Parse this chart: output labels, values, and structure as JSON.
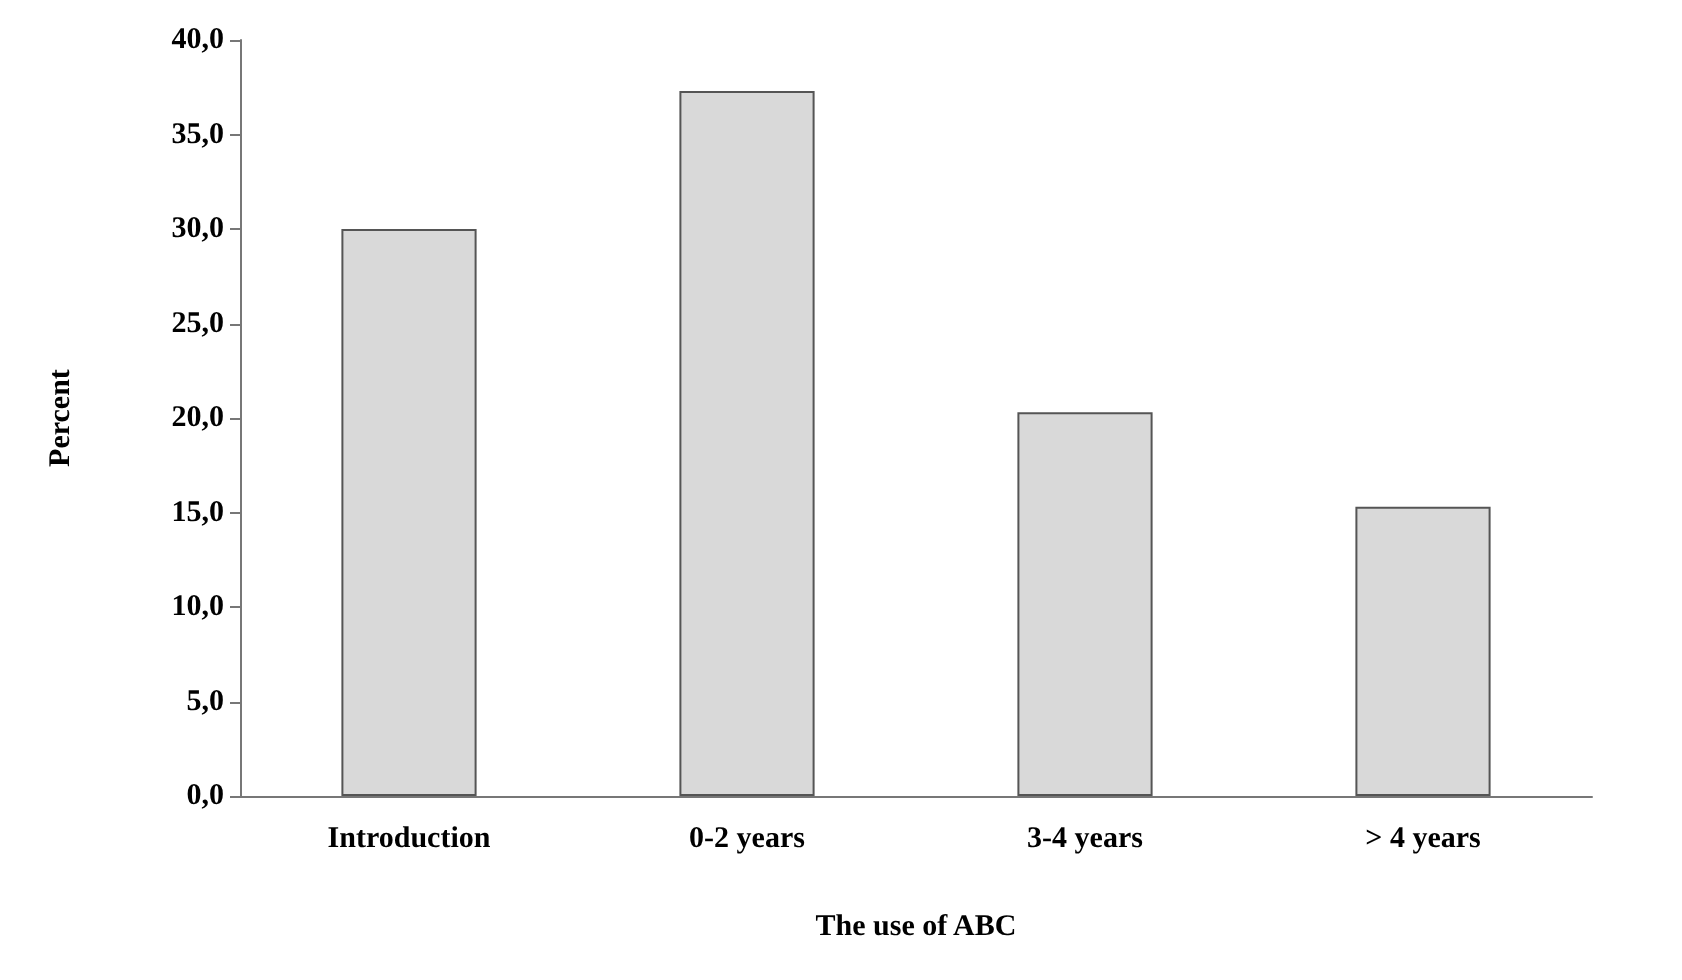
{
  "chart_data": {
    "type": "bar",
    "xlabel": "The use of ABC",
    "ylabel": "Percent",
    "categories": [
      "Introduction",
      "0-2 years",
      "3-4 years",
      "> 4 years"
    ],
    "values": [
      30,
      37.3,
      20.3,
      15.3
    ],
    "color": "#d9d9d9",
    "ylim": [
      0,
      40
    ],
    "yticks": [
      {
        "value": 0,
        "label": "0,0"
      },
      {
        "value": 5,
        "label": "5,0"
      },
      {
        "value": 10,
        "label": "10,0"
      },
      {
        "value": 15,
        "label": "15,0"
      },
      {
        "value": 20,
        "label": "20,0"
      },
      {
        "value": 25,
        "label": "25,0"
      },
      {
        "value": 30,
        "label": "30,0"
      },
      {
        "value": 35,
        "label": "35,0"
      },
      {
        "value": 40,
        "label": "40,0"
      }
    ],
    "grid": false
  }
}
